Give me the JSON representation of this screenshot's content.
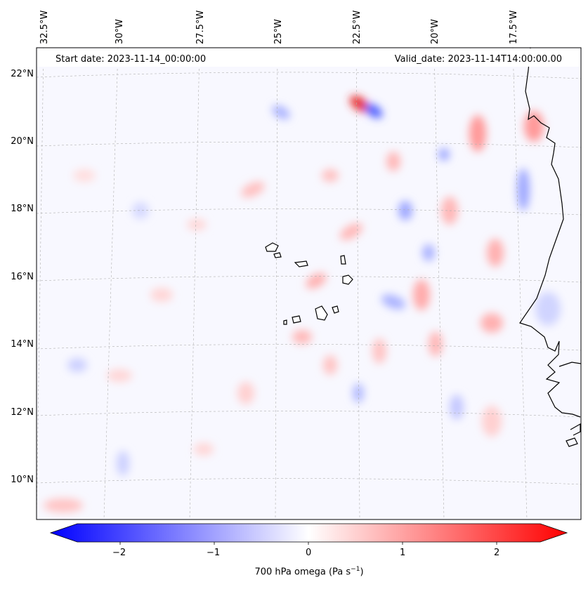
{
  "header": {
    "start_date": "Start date: 2023-11-14_00:00:00",
    "valid_date": "Valid_date: 2023-11-14T14:00:00.00"
  },
  "map": {
    "projection": "lambert-conformal",
    "lon_labels": [
      "32.5°W",
      "30°W",
      "27.5°W",
      "25°W",
      "22.5°W",
      "20°W",
      "17.5°W"
    ],
    "lat_labels": [
      "22°N",
      "20°N",
      "18°N",
      "16°N",
      "14°N",
      "12°N",
      "10°N"
    ],
    "gridlines": "dashed-grey",
    "field": "700 hPa omega",
    "features": [
      "Cabo Verde islands",
      "West African coastline"
    ]
  },
  "colorbar": {
    "label_prefix": "700 hPa omega (Pa s",
    "label_exp": "−1",
    "label_suffix": ")",
    "ticks": [
      "−2",
      "−1",
      "0",
      "1",
      "2"
    ],
    "range": [
      -2.6,
      2.6
    ],
    "extend": "both",
    "cmap": "bwr",
    "colors": {
      "min": "#0000ff",
      "mid": "#ffffff",
      "max": "#ff0000"
    }
  }
}
